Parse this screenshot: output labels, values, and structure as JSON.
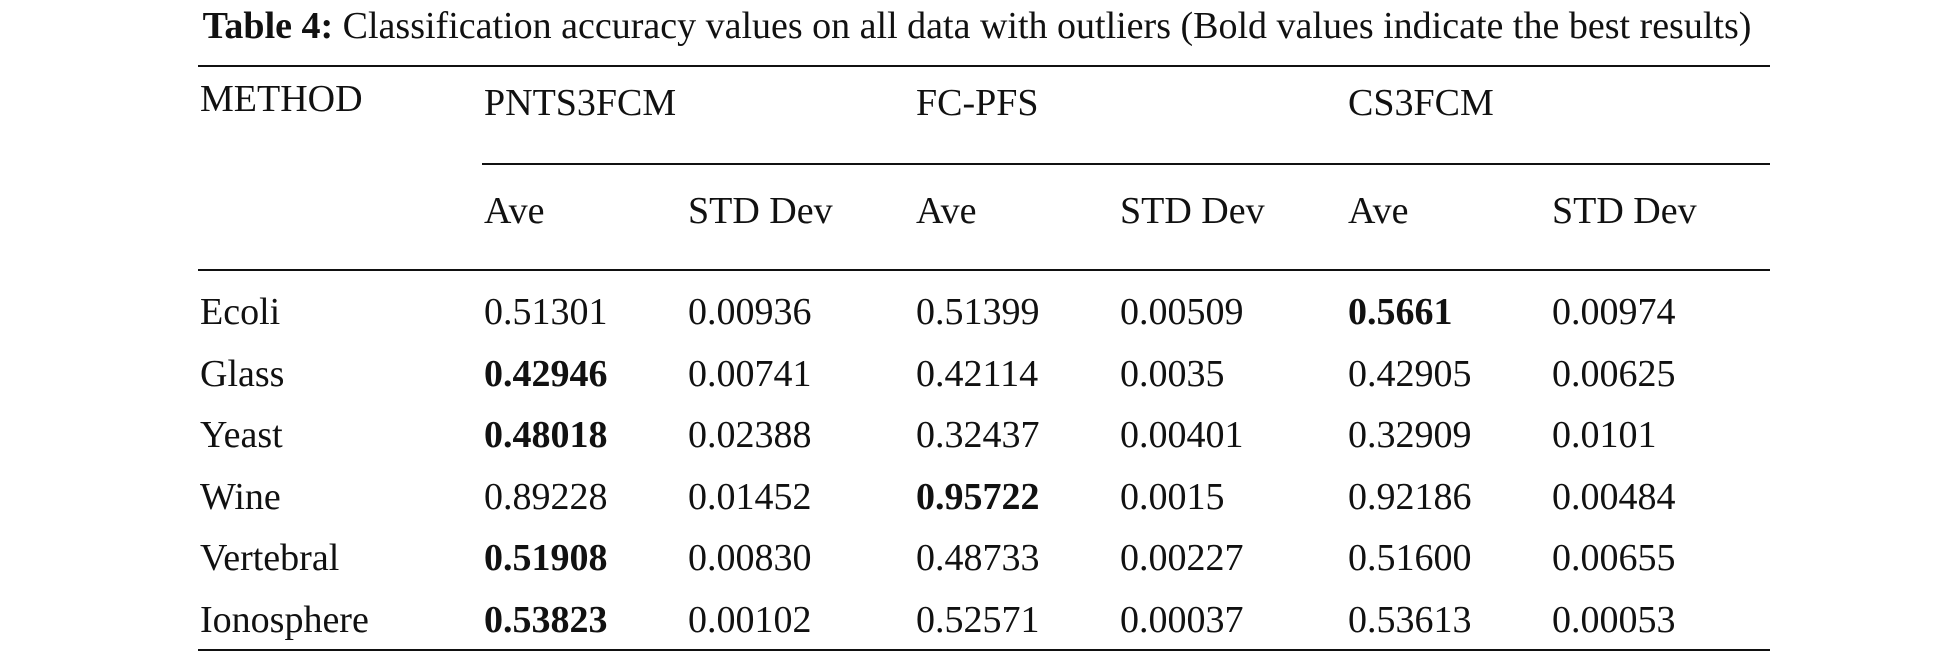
{
  "caption": {
    "label": "Table 4:",
    "text": " Classification accuracy values on all data with outliers (Bold values indicate the best results)"
  },
  "table": {
    "method_header": "METHOD",
    "groups": [
      "PNTS3FCM",
      "FC-PFS",
      "CS3FCM"
    ],
    "sub_headers": [
      "Ave",
      "STD Dev",
      "Ave",
      "STD Dev",
      "Ave",
      "STD Dev"
    ],
    "rows": [
      {
        "name": "Ecoli",
        "values": [
          "0.51301",
          "0.00936",
          "0.51399",
          "0.00509",
          "0.5661",
          "0.00974"
        ],
        "best_index": 4
      },
      {
        "name": "Glass",
        "values": [
          "0.42946",
          "0.00741",
          "0.42114",
          "0.0035",
          "0.42905",
          "0.00625"
        ],
        "best_index": 0
      },
      {
        "name": "Yeast",
        "values": [
          "0.48018",
          "0.02388",
          "0.32437",
          "0.00401",
          "0.32909",
          "0.0101"
        ],
        "best_index": 0
      },
      {
        "name": "Wine",
        "values": [
          "0.89228",
          "0.01452",
          "0.95722",
          "0.0015",
          "0.92186",
          "0.00484"
        ],
        "best_index": 2
      },
      {
        "name": "Vertebral",
        "values": [
          "0.51908",
          "0.00830",
          "0.48733",
          "0.00227",
          "0.51600",
          "0.00655"
        ],
        "best_index": 0
      },
      {
        "name": "Ionosphere",
        "values": [
          "0.53823",
          "0.00102",
          "0.52571",
          "0.00037",
          "0.53613",
          "0.00053"
        ],
        "best_index": 0
      }
    ]
  }
}
